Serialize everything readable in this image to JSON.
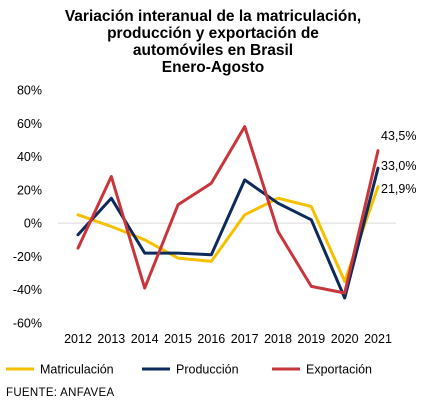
{
  "chart_data": {
    "type": "line",
    "title_lines": [
      "Variación interanual de la matriculación,",
      "producción y exportación de",
      "automóviles  en Brasil",
      "Enero-Agosto"
    ],
    "x": [
      "2012",
      "2013",
      "2014",
      "2015",
      "2016",
      "2017",
      "2018",
      "2019",
      "2020",
      "2021"
    ],
    "ylim": [
      -60,
      80
    ],
    "yticks": [
      "80%",
      "60%",
      "40%",
      "20%",
      "0%",
      "-20%",
      "-40%",
      "-60%"
    ],
    "ytick_values": [
      80,
      60,
      40,
      20,
      0,
      -20,
      -40,
      -60
    ],
    "grid": false,
    "legend_position": "bottom",
    "series": [
      {
        "name": "Matriculación",
        "color": "#f5c000",
        "values": [
          5,
          -2,
          -10,
          -21,
          -23,
          5,
          15,
          10,
          -35,
          21.9
        ],
        "end_label": "21,9%"
      },
      {
        "name": "Producción",
        "color": "#0d2a5c",
        "values": [
          -7,
          15,
          -18,
          -18,
          -19,
          26,
          12,
          2,
          -45,
          33.0
        ],
        "end_label": "33,0%"
      },
      {
        "name": "Exportación",
        "color": "#c8363b",
        "values": [
          -15,
          28,
          -39,
          11,
          24,
          58,
          -5,
          -38,
          -42,
          43.5
        ],
        "end_label": "43,5%"
      }
    ]
  },
  "footer": {
    "source": "FUENTE: ANFAVEA"
  }
}
